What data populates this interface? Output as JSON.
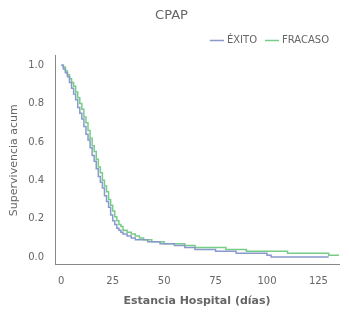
{
  "chart_data": {
    "type": "line",
    "line_style": "steps-post",
    "title": "CPAP",
    "xlabel": "Estancia Hospital (días)",
    "ylabel": "Supervivencia acum",
    "xlim": [
      -3,
      135
    ],
    "ylim": [
      -0.04,
      1.05
    ],
    "xticks": [
      0,
      25,
      50,
      75,
      100,
      125
    ],
    "yticks": [
      {
        "value": 0.0,
        "label": "0.0"
      },
      0.2,
      0.4,
      0.6,
      0.8,
      {
        "value": 1.0,
        "label": "1.0"
      }
    ],
    "grid": false,
    "legend": "upper right",
    "series": [
      {
        "name": "ÉXITO",
        "color": "#8899cc",
        "x": [
          0,
          1,
          2,
          3,
          4,
          5,
          6,
          7,
          8,
          9,
          10,
          11,
          12,
          13,
          14,
          15,
          16,
          17,
          18,
          19,
          20,
          21,
          22,
          23,
          24,
          25,
          26,
          27,
          28,
          29,
          30,
          32,
          34,
          36,
          38,
          40,
          42,
          44,
          46,
          48,
          50,
          55,
          60,
          65,
          70,
          75,
          80,
          85,
          90,
          95,
          100,
          102,
          130
        ],
        "values": [
          1.0,
          0.98,
          0.96,
          0.94,
          0.91,
          0.88,
          0.85,
          0.82,
          0.78,
          0.75,
          0.72,
          0.68,
          0.64,
          0.61,
          0.57,
          0.53,
          0.5,
          0.46,
          0.42,
          0.39,
          0.36,
          0.32,
          0.29,
          0.26,
          0.22,
          0.19,
          0.17,
          0.15,
          0.14,
          0.13,
          0.12,
          0.11,
          0.1,
          0.09,
          0.09,
          0.09,
          0.08,
          0.08,
          0.08,
          0.07,
          0.07,
          0.06,
          0.05,
          0.04,
          0.04,
          0.03,
          0.03,
          0.02,
          0.02,
          0.02,
          0.01,
          0.0,
          0.0
        ]
      },
      {
        "name": "FRACASO",
        "color": "#77cc88",
        "x": [
          0,
          1,
          2,
          3,
          4,
          5,
          6,
          7,
          8,
          9,
          10,
          11,
          12,
          13,
          14,
          15,
          16,
          17,
          18,
          19,
          20,
          21,
          22,
          23,
          24,
          25,
          26,
          27,
          28,
          29,
          30,
          32,
          34,
          36,
          38,
          40,
          42,
          44,
          46,
          48,
          50,
          55,
          60,
          65,
          70,
          75,
          80,
          85,
          90,
          95,
          100,
          110,
          120,
          130,
          135
        ],
        "values": [
          1.0,
          0.99,
          0.97,
          0.95,
          0.93,
          0.91,
          0.89,
          0.86,
          0.83,
          0.8,
          0.77,
          0.73,
          0.7,
          0.66,
          0.62,
          0.58,
          0.55,
          0.51,
          0.47,
          0.44,
          0.4,
          0.37,
          0.34,
          0.3,
          0.27,
          0.24,
          0.21,
          0.19,
          0.17,
          0.16,
          0.14,
          0.13,
          0.12,
          0.11,
          0.1,
          0.09,
          0.09,
          0.08,
          0.08,
          0.08,
          0.07,
          0.07,
          0.06,
          0.05,
          0.05,
          0.05,
          0.04,
          0.04,
          0.03,
          0.03,
          0.03,
          0.02,
          0.02,
          0.01,
          0.01
        ]
      }
    ]
  }
}
